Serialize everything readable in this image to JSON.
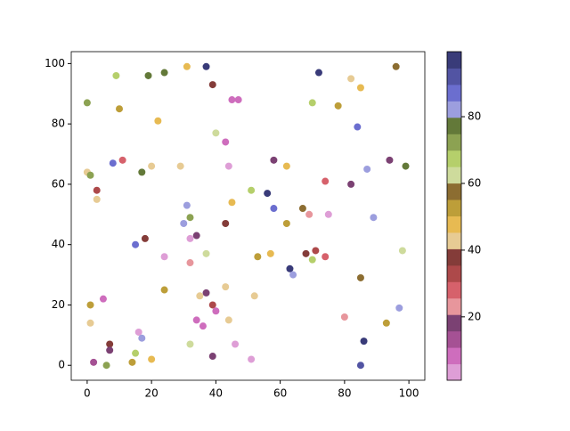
{
  "chart_data": {
    "type": "scatter",
    "x": [
      37,
      31,
      24,
      19,
      9,
      72,
      96,
      39,
      82,
      85,
      0,
      10,
      45,
      47,
      70,
      78,
      22,
      84,
      40,
      43,
      8,
      11,
      20,
      29,
      44,
      58,
      62,
      0,
      1,
      17,
      94,
      99,
      87,
      3,
      3,
      56,
      51,
      74,
      82,
      31,
      45,
      58,
      67,
      69,
      75,
      89,
      32,
      30,
      43,
      62,
      32,
      34,
      18,
      15,
      98,
      71,
      68,
      74,
      37,
      57,
      53,
      24,
      32,
      63,
      64,
      85,
      43,
      24,
      35,
      52,
      37,
      5,
      1,
      39,
      40,
      97,
      1,
      34,
      36,
      44,
      80,
      93,
      16,
      17,
      7,
      7,
      32,
      46,
      86,
      15,
      2,
      6,
      14,
      20,
      39,
      51,
      85,
      70
    ],
    "y": [
      99,
      99,
      97,
      96,
      96,
      97,
      99,
      93,
      95,
      92,
      87,
      85,
      88,
      88,
      87,
      86,
      81,
      79,
      77,
      74,
      67,
      68,
      66,
      66,
      66,
      68,
      66,
      64,
      63,
      64,
      68,
      66,
      65,
      58,
      55,
      57,
      58,
      61,
      60,
      53,
      54,
      52,
      52,
      50,
      50,
      49,
      49,
      47,
      47,
      47,
      42,
      43,
      42,
      40,
      38,
      38,
      37,
      36,
      37,
      37,
      36,
      36,
      34,
      32,
      30,
      29,
      26,
      25,
      23,
      23,
      24,
      22,
      20,
      20,
      18,
      19,
      14,
      15,
      13,
      15,
      16,
      14,
      11,
      9,
      7,
      5,
      7,
      7,
      8,
      4,
      1,
      0,
      1,
      2,
      3,
      2,
      0,
      35
    ],
    "c": [
      96,
      48,
      77,
      77,
      67,
      96,
      57,
      38,
      43,
      48,
      72,
      52,
      8,
      8,
      67,
      52,
      48,
      87,
      62,
      8,
      87,
      28,
      43,
      43,
      3,
      18,
      48,
      43,
      72,
      77,
      18,
      77,
      82,
      33,
      43,
      96,
      67,
      28,
      18,
      82,
      48,
      87,
      57,
      23,
      3,
      82,
      72,
      82,
      38,
      52,
      3,
      18,
      38,
      87,
      62,
      33,
      38,
      28,
      62,
      48,
      52,
      3,
      23,
      96,
      82,
      57,
      43,
      52,
      43,
      43,
      18,
      8,
      52,
      33,
      8,
      82,
      43,
      8,
      8,
      43,
      23,
      52,
      3,
      82,
      38,
      18,
      62,
      3,
      96,
      67,
      13,
      72,
      52,
      48,
      18,
      3,
      91,
      67
    ],
    "colormap": [
      "#de9ed6",
      "#ce6dbd",
      "#a55194",
      "#7b4173",
      "#e7969c",
      "#d6616b",
      "#ad494a",
      "#843c39",
      "#e7cb94",
      "#e7ba52",
      "#bd9e39",
      "#8c6d31",
      "#cedb9c",
      "#b5cf6b",
      "#8ca252",
      "#637939",
      "#9c9ede",
      "#6b6ecf",
      "#5254a3",
      "#393b79"
    ],
    "clim": [
      1,
      99.5
    ],
    "cticks": [
      20,
      40,
      60,
      80
    ],
    "xlim": [
      -4.95,
      104.95
    ],
    "ylim": [
      -4.95,
      103.95
    ],
    "xticks": [
      0,
      20,
      40,
      60,
      80,
      100
    ],
    "yticks": [
      0,
      20,
      40,
      60,
      80,
      100
    ]
  }
}
